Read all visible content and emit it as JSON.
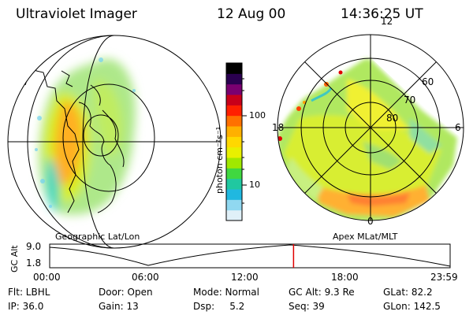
{
  "header": {
    "instrument": "Ultraviolet Imager",
    "date": "12 Aug 00",
    "time": "14:36:25 UT"
  },
  "geo_panel": {
    "label": "Geographic Lat/Lon"
  },
  "polar_panel": {
    "label": "Apex MLat/MLT",
    "mlt_labels": {
      "top": "12",
      "left": "18",
      "right": "6",
      "bottom": "0"
    },
    "lat_labels": [
      "60",
      "70",
      "80"
    ]
  },
  "colorbar": {
    "unit_label": "photon cm⁻²s⁻¹",
    "tick_labels": [
      "100",
      "10"
    ],
    "colors": [
      "#000000",
      "#2a0050",
      "#7a0070",
      "#c8001a",
      "#ff2000",
      "#ff7000",
      "#ffb000",
      "#ffd800",
      "#e8f000",
      "#a0e800",
      "#40d840",
      "#20c8a0",
      "#20b8e0",
      "#90d8f0",
      "#e0f0f8"
    ]
  },
  "orbit": {
    "y_axis_label": "GC Alt",
    "y_ticks": [
      "9.0",
      "1.8"
    ],
    "x_ticks": [
      "00:00",
      "06:00",
      "12:00",
      "18:00",
      "23:59"
    ],
    "current_time_fraction": 0.609,
    "marker_color": "#e00000"
  },
  "info": {
    "filter": "Flt: LBHL",
    "door": "Door: Open",
    "mode": "Mode: Normal",
    "gc_alt": "GC Alt: 9.3 Re",
    "glat": "GLat: 82.2",
    "ip": "IP: 36.0",
    "gain": "Gain: 13",
    "dsp": "Dsp:     5.2",
    "seq": "Seq: 39",
    "glon": "GLon: 142.5"
  }
}
